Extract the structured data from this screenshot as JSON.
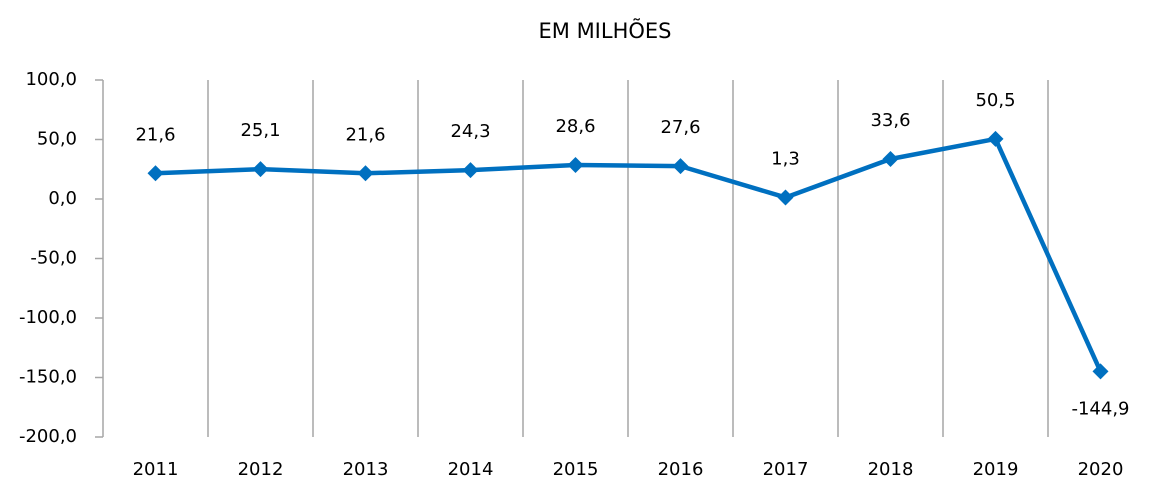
{
  "chart_data": {
    "type": "line",
    "title": "EM MILHÕES",
    "categories": [
      "2011",
      "2012",
      "2013",
      "2014",
      "2015",
      "2016",
      "2017",
      "2018",
      "2019",
      "2020"
    ],
    "series": [
      {
        "name": "EM MILHÕES",
        "color": "#0070c0",
        "values": [
          21.6,
          25.1,
          21.6,
          24.3,
          28.6,
          27.6,
          1.3,
          33.6,
          50.5,
          -144.9
        ],
        "value_labels": [
          "21,6",
          "25,1",
          "21,6",
          "24,3",
          "28,6",
          "27,6",
          "1,3",
          "33,6",
          "50,5",
          "-144,9"
        ]
      }
    ],
    "ylim": [
      -200,
      100
    ],
    "yticks": [
      {
        "value": -200,
        "label": "-200,0"
      },
      {
        "value": -150,
        "label": "-150,0"
      },
      {
        "value": -100,
        "label": "-100,0"
      },
      {
        "value": -50,
        "label": "-50,0"
      },
      {
        "value": 0,
        "label": "0,0"
      },
      {
        "value": 50,
        "label": "50,0"
      },
      {
        "value": 100,
        "label": "100,0"
      }
    ],
    "grid": true
  }
}
